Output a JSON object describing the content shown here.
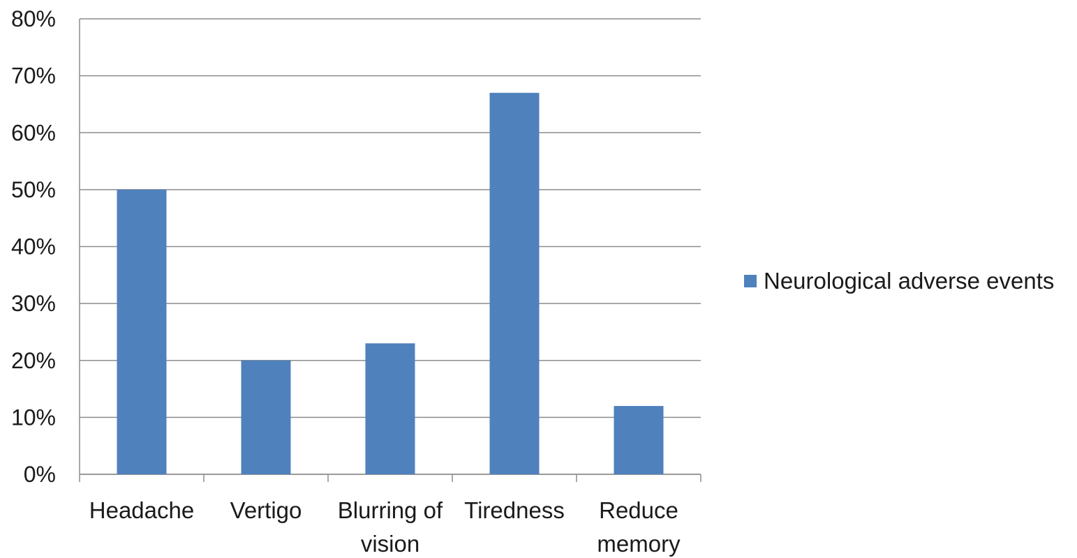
{
  "chart_data": {
    "type": "bar",
    "title": "",
    "xlabel": "",
    "ylabel": "",
    "categories": [
      [
        "Headache"
      ],
      [
        "Vertigo"
      ],
      [
        "Blurring of",
        "vision"
      ],
      [
        "Tiredness"
      ],
      [
        "Reduce",
        "memory"
      ]
    ],
    "series": [
      {
        "name": "Neurological adverse events",
        "values": [
          50,
          20,
          23,
          67,
          12
        ],
        "color": "#4F81BD"
      }
    ],
    "ylim": [
      0,
      80
    ],
    "yticks": [
      "0%",
      "10%",
      "20%",
      "30%",
      "40%",
      "50%",
      "60%",
      "70%",
      "80%"
    ],
    "grid": true,
    "legend_position": "right"
  }
}
